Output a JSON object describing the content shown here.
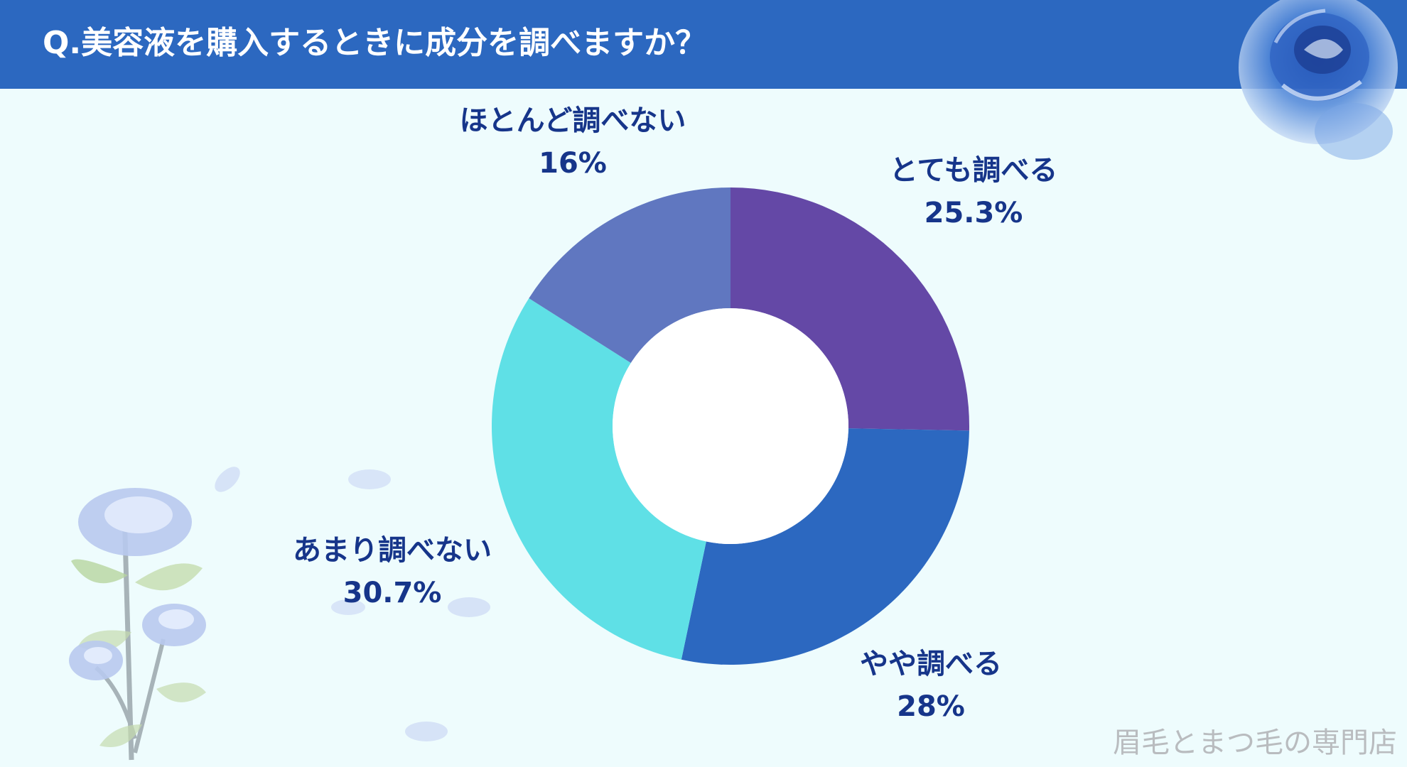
{
  "header": {
    "title": "Q.美容液を購入するときに成分を調べますか？",
    "color": "#2c68c0"
  },
  "watermark": "眉毛とまつ毛の専門店",
  "chart_data": {
    "type": "pie",
    "donut": true,
    "title": "Q.美容液を購入するときに成分を調べますか？",
    "legend": "none",
    "slices": [
      {
        "label": "とても調べる",
        "value": 25.3,
        "value_label": "25.3%",
        "color": "#6448a6"
      },
      {
        "label": "やや調べる",
        "value": 28,
        "value_label": "28%",
        "color": "#2c68c0"
      },
      {
        "label": "あまり調べない",
        "value": 30.7,
        "value_label": "30.7%",
        "color": "#5fe0e6"
      },
      {
        "label": "ほとんど調べない",
        "value": 16,
        "value_label": "16%",
        "color": "#6077c0"
      }
    ]
  }
}
